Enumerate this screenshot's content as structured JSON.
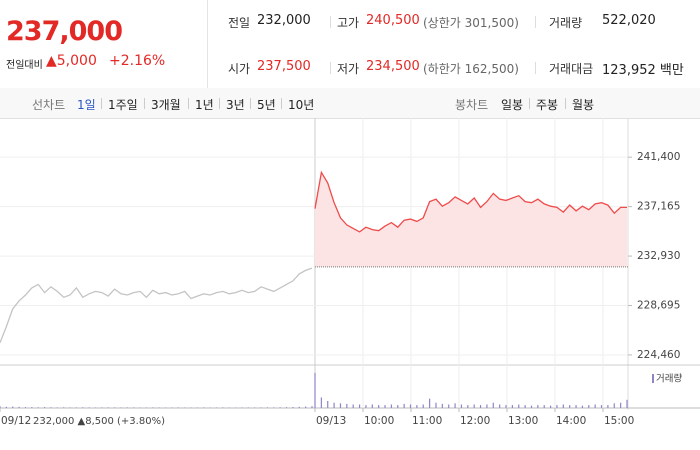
{
  "quote": {
    "price": "237,000",
    "change_label": "전일대비",
    "change": "▲5,000",
    "change_pct": "+2.16%",
    "color": "#e22926"
  },
  "stats": [
    [
      {
        "label": "전일",
        "value": "232,000",
        "color": "#222222"
      },
      {
        "label": "고가",
        "value": "240,500",
        "note": "(상한가 301,500)",
        "color": "#e22926"
      },
      {
        "label": "거래량",
        "value": "522,020",
        "color": "#222222"
      }
    ],
    [
      {
        "label": "시가",
        "value": "237,500",
        "color": "#e22926"
      },
      {
        "label": "저가",
        "value": "234,500",
        "note": "(하한가 162,500)",
        "color": "#e22926"
      },
      {
        "label": "거래대금",
        "value": "123,952 백만",
        "color": "#222222"
      }
    ]
  ],
  "tabs": {
    "line_label": "선차트",
    "line_periods": [
      "1일",
      "1주일",
      "3개월",
      "1년",
      "3년",
      "5년",
      "10년"
    ],
    "line_active": 0,
    "candle_label": "봉차트",
    "candle_periods": [
      "일봉",
      "주봉",
      "월봉"
    ]
  },
  "chart_data": {
    "type": "line",
    "ylim": [
      223600,
      243900
    ],
    "yticks": [
      {
        "value": 241400,
        "label": "241,400"
      },
      {
        "value": 237165,
        "label": "237,165"
      },
      {
        "value": 232930,
        "label": "232,930"
      },
      {
        "value": 228695,
        "label": "228,695"
      },
      {
        "value": 224460,
        "label": "224,460"
      }
    ],
    "grid": true,
    "xticks": [
      "09/12",
      "09/13",
      "10:00",
      "11:00",
      "12:00",
      "13:00",
      "14:00",
      "15:00"
    ],
    "x_annotation": "232,000 ▲8,500 (+3.80%)",
    "base_value": 232000,
    "volume_label": "거래량",
    "volume_color": "#8f84c9",
    "volume_ylim": [
      0,
      65000
    ],
    "series": [
      {
        "color": "#c4c4c4",
        "values": [
          225500,
          226900,
          228400,
          229100,
          229600,
          230200,
          230500,
          229800,
          230300,
          229900,
          229400,
          229600,
          230200,
          229400,
          229700,
          229900,
          229800,
          229500,
          230100,
          229700,
          229600,
          229800,
          229900,
          229400,
          230000,
          229700,
          229800,
          229600,
          229700,
          229900,
          229300,
          229500,
          229700,
          229600,
          229800,
          229900,
          229700,
          229800,
          230000,
          229800,
          229900,
          230300,
          230100,
          229900,
          230200,
          230500,
          230800,
          231400,
          231700,
          231900
        ],
        "volume": [
          3000,
          2000,
          2500,
          2000,
          1500,
          1500,
          1200,
          1500,
          1200,
          1000,
          1200,
          1000,
          1000,
          1200,
          1000,
          900,
          1000,
          1100,
          1000,
          900,
          1000,
          1000,
          800,
          900,
          1000,
          900,
          800,
          900,
          1000,
          900,
          800,
          900,
          1000,
          800,
          900,
          1000,
          900,
          800,
          900,
          1000,
          900,
          1000,
          1100,
          1000,
          1200,
          1400,
          1600,
          2000,
          2500,
          3000
        ]
      },
      {
        "color": "#ee4b4b",
        "fill": "#fde4e4",
        "values": [
          237000,
          240100,
          239200,
          237500,
          236200,
          235600,
          235300,
          235000,
          235400,
          235200,
          235100,
          235500,
          235800,
          235400,
          236000,
          236100,
          235900,
          236200,
          237600,
          237800,
          237200,
          237500,
          238000,
          237700,
          237400,
          237900,
          237100,
          237600,
          238300,
          237800,
          237700,
          237900,
          238100,
          237600,
          237500,
          237800,
          237400,
          237200,
          237100,
          236700,
          237300,
          236800,
          237200,
          236900,
          237400,
          237500,
          237300,
          236600,
          237100,
          237100
        ],
        "volume": [
          60000,
          18000,
          12000,
          9000,
          8000,
          7000,
          6000,
          6000,
          5000,
          6000,
          5000,
          5000,
          6000,
          5000,
          7000,
          6000,
          5000,
          6000,
          16000,
          9000,
          7000,
          6000,
          8000,
          6000,
          5000,
          6000,
          5000,
          6000,
          9000,
          6000,
          5000,
          5000,
          6000,
          5000,
          4000,
          5000,
          5000,
          4000,
          5000,
          6000,
          5000,
          5000,
          4000,
          5000,
          6000,
          5000,
          5000,
          8000,
          9000,
          14000
        ]
      }
    ]
  }
}
